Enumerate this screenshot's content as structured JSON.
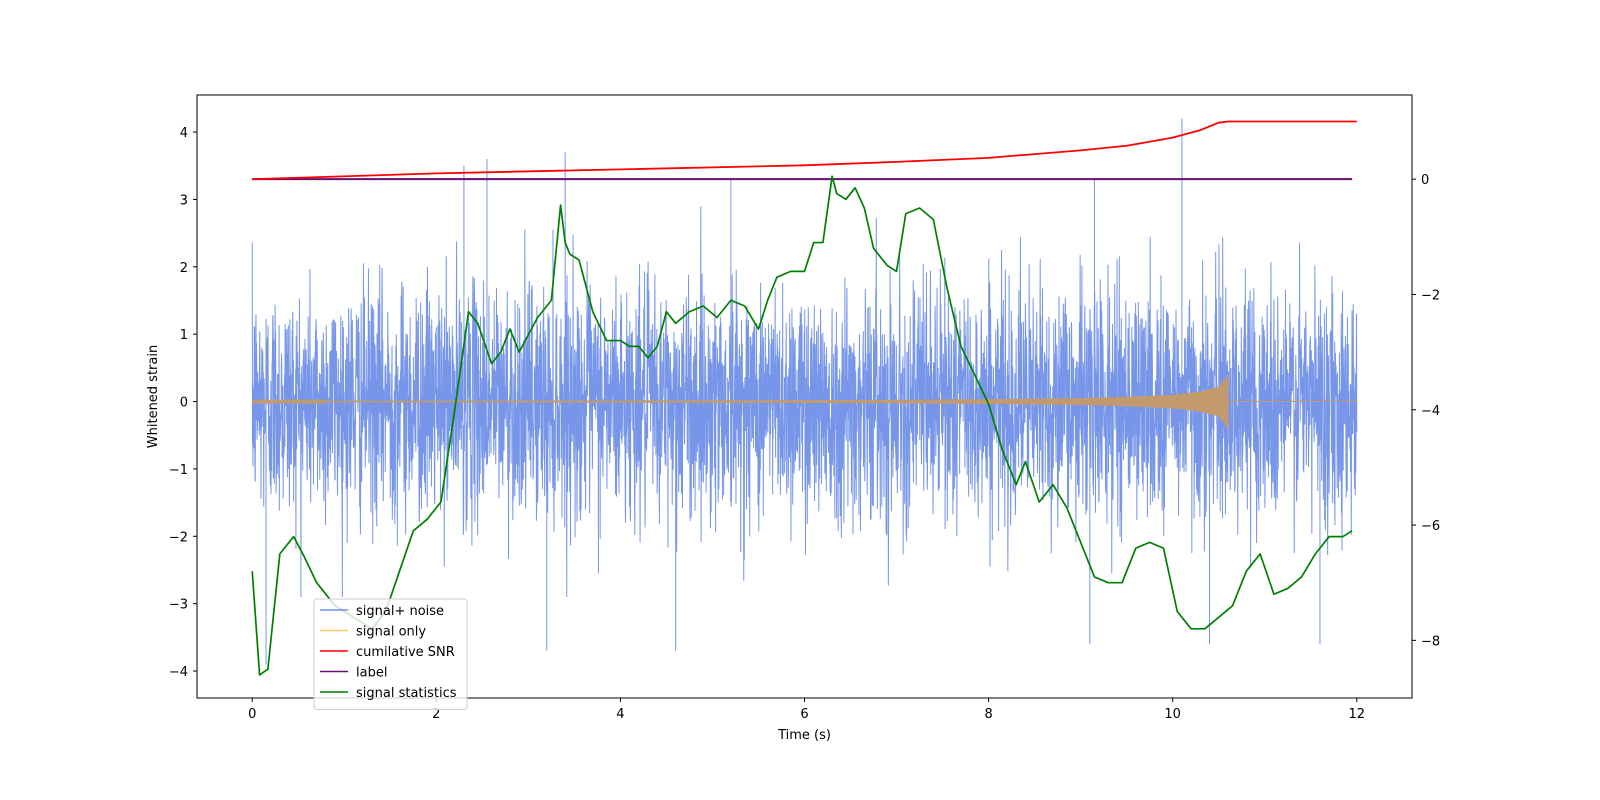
{
  "chart_data": {
    "type": "line",
    "title": "",
    "xlabel": "Time (s)",
    "ylabel": "Whitened strain",
    "y2label": "",
    "xlim": [
      -0.6,
      12.6
    ],
    "ylim": [
      -4.4,
      4.55
    ],
    "y2lim": [
      -9.0,
      1.46
    ],
    "xticks": [
      "0",
      "2",
      "4",
      "6",
      "8",
      "10",
      "12"
    ],
    "yticks": [
      "4",
      "3",
      "2",
      "1",
      "0",
      "−1",
      "−2",
      "−3",
      "−4"
    ],
    "y2ticks": [
      "0",
      "−2",
      "−4",
      "−6",
      "−8"
    ],
    "grid": false,
    "legend_position": "lower left",
    "legend": [
      {
        "name": "signal+ noise",
        "color": "#7090e8"
      },
      {
        "name": "signal only",
        "color": "#ffc864"
      },
      {
        "name": "cumilative SNR",
        "color": "#ff0000"
      },
      {
        "name": "label",
        "color": "#6a0f6e"
      },
      {
        "name": "signal statistics",
        "color": "#008000"
      }
    ],
    "series": [
      {
        "name": "signal+ noise",
        "axis": "left",
        "color": "#7090e8",
        "description": "dense noise around 0, amplitude roughly -3.9 to 4.2",
        "x_range": [
          0,
          12
        ],
        "std": 0.85,
        "peaks": [
          [
            2.3,
            3.5
          ],
          [
            2.55,
            3.6
          ],
          [
            3.4,
            3.7
          ],
          [
            5.2,
            3.3
          ],
          [
            10.1,
            4.2
          ],
          [
            9.15,
            3.3
          ],
          [
            0.15,
            -3.9
          ],
          [
            3.2,
            -3.7
          ],
          [
            4.6,
            -3.7
          ],
          [
            10.4,
            -3.6
          ],
          [
            9.1,
            -3.6
          ],
          [
            11.6,
            -3.6
          ]
        ]
      },
      {
        "name": "signal only",
        "axis": "left",
        "color": "#c29a6e",
        "description": "chirp growing until merger at ~10.6 s",
        "x": [
          0,
          2,
          4,
          6,
          7,
          8,
          9,
          9.5,
          10,
          10.3,
          10.5,
          10.6
        ],
        "amplitude": [
          0.01,
          0.012,
          0.015,
          0.02,
          0.025,
          0.035,
          0.05,
          0.07,
          0.1,
          0.15,
          0.22,
          0.4
        ],
        "post_merger": 0.0
      },
      {
        "name": "cumilative SNR",
        "axis": "right",
        "color": "#ff0000",
        "x": [
          0,
          2,
          4,
          6,
          7,
          8,
          9,
          9.5,
          10,
          10.3,
          10.5,
          10.6,
          12
        ],
        "y": [
          0.0,
          0.1,
          0.17,
          0.24,
          0.3,
          0.37,
          0.5,
          0.58,
          0.72,
          0.85,
          0.98,
          1.0,
          1.0
        ]
      },
      {
        "name": "label",
        "axis": "right",
        "color": "#6a0f6e",
        "x": [
          0,
          11.95
        ],
        "y": [
          0,
          0
        ]
      },
      {
        "name": "signal statistics",
        "axis": "right",
        "color": "#008000",
        "x": [
          0,
          0.08,
          0.17,
          0.3,
          0.35,
          0.45,
          0.55,
          0.7,
          0.9,
          1.1,
          1.3,
          1.45,
          1.6,
          1.75,
          1.9,
          2.05,
          2.2,
          2.35,
          2.45,
          2.6,
          2.7,
          2.8,
          2.9,
          3.0,
          3.1,
          3.25,
          3.35,
          3.4,
          3.45,
          3.55,
          3.7,
          3.85,
          4.0,
          4.1,
          4.2,
          4.3,
          4.4,
          4.5,
          4.6,
          4.75,
          4.9,
          5.05,
          5.2,
          5.35,
          5.5,
          5.6,
          5.7,
          5.85,
          6.0,
          6.1,
          6.2,
          6.3,
          6.35,
          6.45,
          6.55,
          6.65,
          6.75,
          6.9,
          7.0,
          7.1,
          7.25,
          7.4,
          7.55,
          7.7,
          7.85,
          8.0,
          8.15,
          8.3,
          8.4,
          8.55,
          8.7,
          8.85,
          9.0,
          9.15,
          9.3,
          9.45,
          9.6,
          9.75,
          9.9,
          10.05,
          10.2,
          10.35,
          10.5,
          10.65,
          10.8,
          10.95,
          11.1,
          11.25,
          11.4,
          11.55,
          11.7,
          11.85,
          11.95
        ],
        "y": [
          -6.8,
          -8.6,
          -8.5,
          -6.5,
          -6.4,
          -6.2,
          -6.5,
          -7.0,
          -7.4,
          -7.6,
          -7.8,
          -7.5,
          -6.8,
          -6.1,
          -5.9,
          -5.6,
          -4.0,
          -2.3,
          -2.5,
          -3.2,
          -3.0,
          -2.6,
          -3.0,
          -2.7,
          -2.4,
          -2.1,
          -0.45,
          -1.1,
          -1.3,
          -1.4,
          -2.3,
          -2.8,
          -2.8,
          -2.9,
          -2.9,
          -3.1,
          -2.9,
          -2.3,
          -2.5,
          -2.3,
          -2.2,
          -2.4,
          -2.1,
          -2.2,
          -2.6,
          -2.1,
          -1.7,
          -1.6,
          -1.6,
          -1.1,
          -1.1,
          0.05,
          -0.25,
          -0.35,
          -0.15,
          -0.5,
          -1.2,
          -1.5,
          -1.6,
          -0.6,
          -0.5,
          -0.7,
          -1.9,
          -2.9,
          -3.4,
          -3.9,
          -4.7,
          -5.3,
          -4.9,
          -5.6,
          -5.3,
          -5.7,
          -6.3,
          -6.9,
          -7.0,
          -7.0,
          -6.4,
          -6.3,
          -6.4,
          -7.5,
          -7.8,
          -7.8,
          -7.6,
          -7.4,
          -6.8,
          -6.5,
          -7.2,
          -7.1,
          -6.9,
          -6.5,
          -6.2,
          -6.2,
          -6.1
        ]
      }
    ]
  }
}
